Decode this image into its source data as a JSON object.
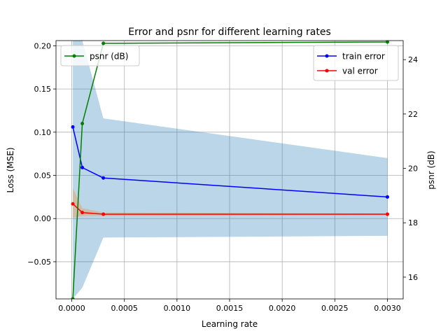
{
  "chart_data": {
    "type": "line",
    "title": "Error and psnr for different learning rates",
    "xlabel": "Learning rate",
    "ylabel": "Loss (MSE)",
    "y2label": "psnr (dB)",
    "x": [
      1e-05,
      0.0001,
      0.0003,
      0.003
    ],
    "xlim": [
      -0.00015,
      0.00315
    ],
    "ylim": [
      -0.093,
      0.206
    ],
    "y2lim": [
      15.2,
      24.7
    ],
    "xticks": [
      0.0,
      0.0005,
      0.001,
      0.0015,
      0.002,
      0.0025,
      0.003
    ],
    "xtick_labels": [
      "0.0000",
      "0.0005",
      "0.0010",
      "0.0015",
      "0.0020",
      "0.0025",
      "0.0030"
    ],
    "yticks": [
      -0.05,
      0.0,
      0.05,
      0.1,
      0.15,
      0.2
    ],
    "ytick_labels": [
      "−0.05",
      "0.00",
      "0.05",
      "0.10",
      "0.15",
      "0.20"
    ],
    "y2ticks": [
      16,
      18,
      20,
      22,
      24
    ],
    "y2tick_labels": [
      "16",
      "18",
      "20",
      "22",
      "24"
    ],
    "grid": true,
    "series": [
      {
        "name": "train error",
        "axis": "left",
        "color": "#0000ff",
        "values": [
          0.106,
          0.059,
          0.047,
          0.025
        ],
        "band_lower": [
          -0.093,
          -0.08,
          -0.022,
          -0.02
        ],
        "band_upper": [
          0.206,
          0.206,
          0.116,
          0.07
        ],
        "band_color": "#1f77b4",
        "band_opacity": 0.3
      },
      {
        "name": "val error",
        "axis": "left",
        "color": "#ff0000",
        "values": [
          0.017,
          0.007,
          0.005,
          0.005
        ],
        "band_lower": [
          0.001,
          0.003,
          0.003,
          0.004
        ],
        "band_upper": [
          0.035,
          0.012,
          0.007,
          0.006
        ],
        "band_color": "#ff7f0e",
        "band_opacity": 0.3
      },
      {
        "name": "psnr (dB)",
        "axis": "right",
        "color": "#008000",
        "values": [
          15.2,
          21.65,
          24.6,
          24.65
        ]
      }
    ],
    "legends": [
      {
        "position": "upper-left",
        "entries": [
          "psnr (dB)"
        ]
      },
      {
        "position": "upper-right",
        "entries": [
          "train error",
          "val error"
        ]
      }
    ]
  }
}
